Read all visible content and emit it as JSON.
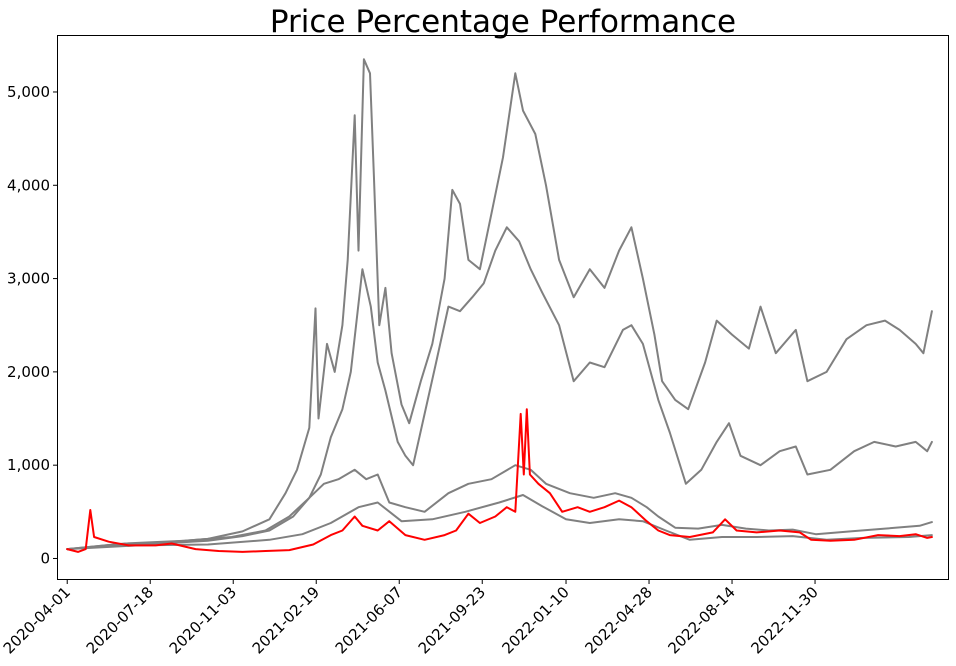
{
  "chart_data": {
    "type": "line",
    "title": "Price Percentage Performance",
    "xlabel": "",
    "ylabel": "",
    "x_type": "date",
    "x_range": [
      "2020-03-20",
      "2023-05-22"
    ],
    "x_ticks": [
      "2020-04-01",
      "2020-07-18",
      "2020-11-03",
      "2021-02-19",
      "2021-06-07",
      "2021-09-23",
      "2022-01-10",
      "2022-04-28",
      "2022-08-14",
      "2022-11-30"
    ],
    "ylim": [
      -220,
      5600
    ],
    "y_ticks": [
      0,
      1000,
      2000,
      3000,
      4000,
      5000
    ],
    "y_tick_labels": [
      "0",
      "1,000",
      "2,000",
      "3,000",
      "4,000",
      "5,000"
    ],
    "grid": false,
    "colors": {
      "gray": "#808080",
      "red": "#ff0000"
    },
    "series": [
      {
        "color": "#808080",
        "points": [
          [
            "2020-04-01",
            100
          ],
          [
            "2020-06-01",
            150
          ],
          [
            "2020-08-01",
            170
          ],
          [
            "2020-10-01",
            210
          ],
          [
            "2020-11-15",
            290
          ],
          [
            "2020-12-20",
            420
          ],
          [
            "2021-01-10",
            700
          ],
          [
            "2021-01-25",
            950
          ],
          [
            "2021-02-10",
            1400
          ],
          [
            "2021-02-18",
            2680
          ],
          [
            "2021-02-22",
            1500
          ],
          [
            "2021-03-05",
            2300
          ],
          [
            "2021-03-15",
            2000
          ],
          [
            "2021-03-25",
            2500
          ],
          [
            "2021-04-01",
            3200
          ],
          [
            "2021-04-10",
            4750
          ],
          [
            "2021-04-15",
            3300
          ],
          [
            "2021-04-22",
            5350
          ],
          [
            "2021-04-30",
            5200
          ],
          [
            "2021-05-05",
            4100
          ],
          [
            "2021-05-12",
            2500
          ],
          [
            "2021-05-20",
            2900
          ],
          [
            "2021-05-28",
            2200
          ],
          [
            "2021-06-10",
            1650
          ],
          [
            "2021-06-20",
            1450
          ],
          [
            "2021-07-05",
            1900
          ],
          [
            "2021-07-20",
            2300
          ],
          [
            "2021-08-05",
            3000
          ],
          [
            "2021-08-15",
            3950
          ],
          [
            "2021-08-25",
            3800
          ],
          [
            "2021-09-05",
            3200
          ],
          [
            "2021-09-20",
            3100
          ],
          [
            "2021-10-05",
            3700
          ],
          [
            "2021-10-20",
            4300
          ],
          [
            "2021-11-05",
            5200
          ],
          [
            "2021-11-15",
            4800
          ],
          [
            "2021-12-01",
            4550
          ],
          [
            "2021-12-15",
            4000
          ],
          [
            "2022-01-01",
            3200
          ],
          [
            "2022-01-20",
            2800
          ],
          [
            "2022-02-10",
            3100
          ],
          [
            "2022-03-01",
            2900
          ],
          [
            "2022-03-20",
            3300
          ],
          [
            "2022-04-05",
            3550
          ],
          [
            "2022-04-20",
            3000
          ],
          [
            "2022-05-05",
            2400
          ],
          [
            "2022-05-15",
            1900
          ],
          [
            "2022-06-01",
            1700
          ],
          [
            "2022-06-18",
            1600
          ],
          [
            "2022-07-10",
            2100
          ],
          [
            "2022-07-25",
            2550
          ],
          [
            "2022-08-14",
            2400
          ],
          [
            "2022-09-05",
            2250
          ],
          [
            "2022-09-20",
            2700
          ],
          [
            "2022-10-10",
            2200
          ],
          [
            "2022-11-05",
            2450
          ],
          [
            "2022-11-20",
            1900
          ],
          [
            "2022-12-15",
            2000
          ],
          [
            "2023-01-10",
            2350
          ],
          [
            "2023-02-05",
            2500
          ],
          [
            "2023-03-01",
            2550
          ],
          [
            "2023-03-20",
            2450
          ],
          [
            "2023-04-10",
            2300
          ],
          [
            "2023-04-20",
            2200
          ],
          [
            "2023-05-01",
            2650
          ]
        ]
      },
      {
        "color": "#808080",
        "points": [
          [
            "2020-04-01",
            100
          ],
          [
            "2020-06-01",
            140
          ],
          [
            "2020-08-01",
            160
          ],
          [
            "2020-10-01",
            190
          ],
          [
            "2020-11-15",
            240
          ],
          [
            "2020-12-20",
            300
          ],
          [
            "2021-01-20",
            450
          ],
          [
            "2021-02-10",
            650
          ],
          [
            "2021-02-25",
            900
          ],
          [
            "2021-03-10",
            1300
          ],
          [
            "2021-03-25",
            1600
          ],
          [
            "2021-04-05",
            2000
          ],
          [
            "2021-04-20",
            3100
          ],
          [
            "2021-05-01",
            2700
          ],
          [
            "2021-05-10",
            2100
          ],
          [
            "2021-05-20",
            1800
          ],
          [
            "2021-06-05",
            1250
          ],
          [
            "2021-06-15",
            1100
          ],
          [
            "2021-06-25",
            1000
          ],
          [
            "2021-07-10",
            1550
          ],
          [
            "2021-07-25",
            2100
          ],
          [
            "2021-08-10",
            2700
          ],
          [
            "2021-08-25",
            2650
          ],
          [
            "2021-09-10",
            2800
          ],
          [
            "2021-09-25",
            2950
          ],
          [
            "2021-10-10",
            3300
          ],
          [
            "2021-10-25",
            3550
          ],
          [
            "2021-11-10",
            3400
          ],
          [
            "2021-11-25",
            3100
          ],
          [
            "2021-12-10",
            2850
          ],
          [
            "2022-01-01",
            2500
          ],
          [
            "2022-01-20",
            1900
          ],
          [
            "2022-02-10",
            2100
          ],
          [
            "2022-03-01",
            2050
          ],
          [
            "2022-03-25",
            2450
          ],
          [
            "2022-04-05",
            2500
          ],
          [
            "2022-04-20",
            2300
          ],
          [
            "2022-05-10",
            1700
          ],
          [
            "2022-05-25",
            1350
          ],
          [
            "2022-06-15",
            800
          ],
          [
            "2022-07-05",
            950
          ],
          [
            "2022-07-25",
            1250
          ],
          [
            "2022-08-10",
            1450
          ],
          [
            "2022-08-25",
            1100
          ],
          [
            "2022-09-20",
            1000
          ],
          [
            "2022-10-15",
            1150
          ],
          [
            "2022-11-05",
            1200
          ],
          [
            "2022-11-20",
            900
          ],
          [
            "2022-12-20",
            950
          ],
          [
            "2023-01-20",
            1150
          ],
          [
            "2023-02-15",
            1250
          ],
          [
            "2023-03-15",
            1200
          ],
          [
            "2023-04-10",
            1250
          ],
          [
            "2023-04-25",
            1150
          ],
          [
            "2023-05-01",
            1250
          ]
        ]
      },
      {
        "color": "#808080",
        "points": [
          [
            "2020-04-01",
            100
          ],
          [
            "2020-06-15",
            160
          ],
          [
            "2020-09-01",
            190
          ],
          [
            "2020-11-01",
            230
          ],
          [
            "2020-12-15",
            300
          ],
          [
            "2021-01-15",
            450
          ],
          [
            "2021-02-10",
            650
          ],
          [
            "2021-03-01",
            800
          ],
          [
            "2021-03-20",
            850
          ],
          [
            "2021-04-10",
            950
          ],
          [
            "2021-04-25",
            850
          ],
          [
            "2021-05-10",
            900
          ],
          [
            "2021-05-25",
            600
          ],
          [
            "2021-06-15",
            550
          ],
          [
            "2021-07-10",
            500
          ],
          [
            "2021-08-10",
            700
          ],
          [
            "2021-09-05",
            800
          ],
          [
            "2021-10-05",
            850
          ],
          [
            "2021-11-05",
            1000
          ],
          [
            "2021-11-25",
            950
          ],
          [
            "2021-12-15",
            800
          ],
          [
            "2022-01-15",
            700
          ],
          [
            "2022-02-15",
            650
          ],
          [
            "2022-03-15",
            700
          ],
          [
            "2022-04-05",
            650
          ],
          [
            "2022-04-25",
            550
          ],
          [
            "2022-05-10",
            450
          ],
          [
            "2022-06-01",
            330
          ],
          [
            "2022-07-01",
            320
          ],
          [
            "2022-08-01",
            360
          ],
          [
            "2022-09-01",
            320
          ],
          [
            "2022-10-01",
            300
          ],
          [
            "2022-11-01",
            310
          ],
          [
            "2022-12-01",
            260
          ],
          [
            "2023-01-15",
            290
          ],
          [
            "2023-03-01",
            320
          ],
          [
            "2023-04-15",
            350
          ],
          [
            "2023-05-01",
            390
          ]
        ]
      },
      {
        "color": "#808080",
        "points": [
          [
            "2020-04-01",
            100
          ],
          [
            "2020-07-01",
            140
          ],
          [
            "2020-10-01",
            150
          ],
          [
            "2020-12-20",
            200
          ],
          [
            "2021-02-01",
            260
          ],
          [
            "2021-03-10",
            380
          ],
          [
            "2021-04-15",
            550
          ],
          [
            "2021-05-10",
            600
          ],
          [
            "2021-06-10",
            400
          ],
          [
            "2021-07-20",
            420
          ],
          [
            "2021-09-01",
            500
          ],
          [
            "2021-10-15",
            600
          ],
          [
            "2021-11-15",
            680
          ],
          [
            "2021-12-10",
            560
          ],
          [
            "2022-01-10",
            420
          ],
          [
            "2022-02-10",
            380
          ],
          [
            "2022-03-20",
            420
          ],
          [
            "2022-04-20",
            400
          ],
          [
            "2022-05-20",
            300
          ],
          [
            "2022-06-20",
            200
          ],
          [
            "2022-08-01",
            230
          ],
          [
            "2022-09-15",
            230
          ],
          [
            "2022-11-01",
            240
          ],
          [
            "2022-12-15",
            200
          ],
          [
            "2023-02-01",
            220
          ],
          [
            "2023-04-01",
            230
          ],
          [
            "2023-05-01",
            250
          ]
        ]
      },
      {
        "color": "#ff0000",
        "points": [
          [
            "2020-04-01",
            100
          ],
          [
            "2020-04-15",
            70
          ],
          [
            "2020-04-25",
            100
          ],
          [
            "2020-05-01",
            520
          ],
          [
            "2020-05-06",
            230
          ],
          [
            "2020-05-25",
            180
          ],
          [
            "2020-06-20",
            140
          ],
          [
            "2020-07-25",
            140
          ],
          [
            "2020-08-15",
            160
          ],
          [
            "2020-09-15",
            100
          ],
          [
            "2020-10-15",
            80
          ],
          [
            "2020-11-15",
            70
          ],
          [
            "2020-12-15",
            80
          ],
          [
            "2021-01-15",
            90
          ],
          [
            "2021-02-15",
            150
          ],
          [
            "2021-03-10",
            250
          ],
          [
            "2021-03-25",
            300
          ],
          [
            "2021-04-10",
            450
          ],
          [
            "2021-04-20",
            350
          ],
          [
            "2021-05-10",
            300
          ],
          [
            "2021-05-25",
            400
          ],
          [
            "2021-06-15",
            250
          ],
          [
            "2021-07-10",
            200
          ],
          [
            "2021-08-05",
            250
          ],
          [
            "2021-08-20",
            300
          ],
          [
            "2021-09-05",
            480
          ],
          [
            "2021-09-20",
            380
          ],
          [
            "2021-10-10",
            450
          ],
          [
            "2021-10-25",
            550
          ],
          [
            "2021-11-05",
            500
          ],
          [
            "2021-11-12",
            1550
          ],
          [
            "2021-11-16",
            900
          ],
          [
            "2021-11-20",
            1600
          ],
          [
            "2021-11-24",
            900
          ],
          [
            "2021-12-05",
            800
          ],
          [
            "2021-12-20",
            700
          ],
          [
            "2022-01-05",
            500
          ],
          [
            "2022-01-25",
            550
          ],
          [
            "2022-02-10",
            500
          ],
          [
            "2022-03-01",
            550
          ],
          [
            "2022-03-20",
            620
          ],
          [
            "2022-04-05",
            550
          ],
          [
            "2022-04-25",
            400
          ],
          [
            "2022-05-10",
            300
          ],
          [
            "2022-05-25",
            250
          ],
          [
            "2022-06-20",
            230
          ],
          [
            "2022-07-20",
            280
          ],
          [
            "2022-08-05",
            420
          ],
          [
            "2022-08-20",
            300
          ],
          [
            "2022-09-15",
            280
          ],
          [
            "2022-10-15",
            300
          ],
          [
            "2022-11-10",
            280
          ],
          [
            "2022-11-25",
            200
          ],
          [
            "2022-12-20",
            190
          ],
          [
            "2023-01-20",
            200
          ],
          [
            "2023-02-20",
            250
          ],
          [
            "2023-03-20",
            240
          ],
          [
            "2023-04-10",
            260
          ],
          [
            "2023-04-25",
            220
          ],
          [
            "2023-05-01",
            230
          ]
        ]
      }
    ]
  }
}
